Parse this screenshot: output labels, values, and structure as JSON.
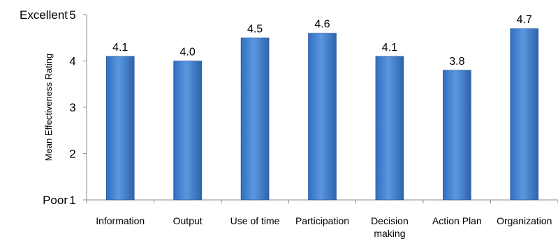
{
  "chart_data": {
    "type": "bar",
    "categories": [
      [
        "Information"
      ],
      [
        "Output"
      ],
      [
        "Use of time"
      ],
      [
        "Participation"
      ],
      [
        "Decision",
        "making"
      ],
      [
        "Action Plan"
      ],
      [
        "Organization"
      ]
    ],
    "values": [
      4.1,
      4.0,
      4.5,
      4.6,
      4.1,
      3.8,
      4.7
    ],
    "value_labels": [
      "4.1",
      "4.0",
      "4.5",
      "4.6",
      "4.1",
      "3.8",
      "4.7"
    ],
    "ylabel": "Mean Effectiveness  Rating",
    "ylim": [
      1,
      5
    ],
    "yticks": [
      1,
      2,
      3,
      4,
      5
    ],
    "ytick_labels": [
      "1",
      "2",
      "3",
      "4",
      "5"
    ],
    "y_anchor_labels": {
      "top": "Excellent",
      "bottom": "Poor"
    },
    "grid": false,
    "legend": "none",
    "colors": {
      "bar_left": "#2f6fc0",
      "bar_mid": "#5b97e0",
      "bar_right": "#2d64ad",
      "bar_edge": "#1f4f8f",
      "axis": "#8c8c8c"
    }
  }
}
